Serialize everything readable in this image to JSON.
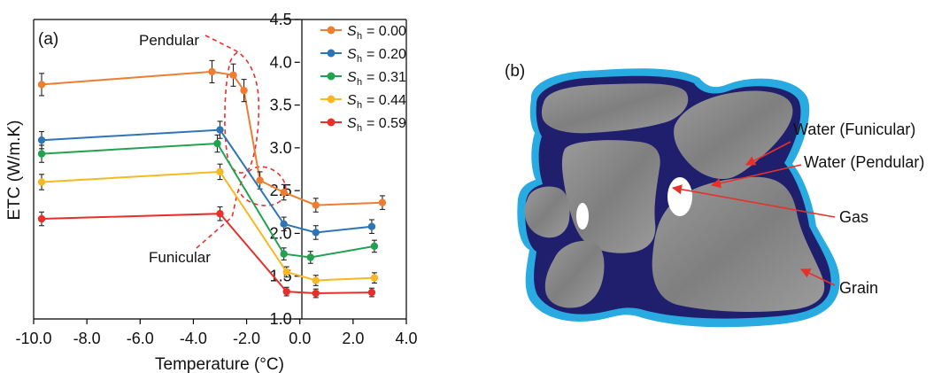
{
  "chart_data": {
    "type": "line",
    "panel_label": "(a)",
    "xlabel": "Temperature (°C)",
    "ylabel": "ETC (W/m.K)",
    "xlim": [
      -10.0,
      4.0
    ],
    "ylim": [
      1.0,
      4.5
    ],
    "x_ticks": [
      "-10.0",
      "-8.0",
      "-6.0",
      "-4.0",
      "-2.0",
      "0.0",
      "2.0",
      "4.0"
    ],
    "y_ticks": [
      "1.0",
      "1.5",
      "2.0",
      "2.5",
      "3.0",
      "3.5",
      "4.0",
      "4.5"
    ],
    "grid": false,
    "legend_position": "top-right",
    "error_bars": true,
    "series": [
      {
        "name": "Sh = 0.00",
        "color": "#ED7D31",
        "x": [
          -9.7,
          -3.3,
          -2.5,
          -2.1,
          -1.5,
          -0.6,
          0.6,
          3.1
        ],
        "y": [
          3.74,
          3.89,
          3.85,
          3.67,
          2.62,
          2.48,
          2.33,
          2.36
        ],
        "err": [
          0.13,
          0.13,
          0.13,
          0.13,
          0.1,
          0.09,
          0.08,
          0.08
        ]
      },
      {
        "name": "Sh = 0.20",
        "color": "#2E75B6",
        "x": [
          -9.7,
          -3.0,
          -0.6,
          0.6,
          2.7
        ],
        "y": [
          3.09,
          3.21,
          2.11,
          2.01,
          2.08
        ],
        "err": [
          0.1,
          0.1,
          0.08,
          0.08,
          0.08
        ]
      },
      {
        "name": "Sh = 0.31",
        "color": "#22A250",
        "x": [
          -9.7,
          -3.1,
          -0.6,
          0.4,
          2.8
        ],
        "y": [
          2.93,
          3.05,
          1.76,
          1.72,
          1.85
        ],
        "err": [
          0.1,
          0.1,
          0.07,
          0.07,
          0.07
        ]
      },
      {
        "name": "Sh = 0.44",
        "color": "#F7B921",
        "x": [
          -9.7,
          -3.0,
          -0.5,
          0.6,
          2.8
        ],
        "y": [
          2.6,
          2.72,
          1.55,
          1.45,
          1.48
        ],
        "err": [
          0.09,
          0.09,
          0.06,
          0.06,
          0.06
        ]
      },
      {
        "name": "Sh = 0.59",
        "color": "#E8302A",
        "x": [
          -9.7,
          -3.0,
          -0.5,
          0.6,
          2.7
        ],
        "y": [
          2.17,
          2.23,
          1.32,
          1.3,
          1.31
        ],
        "err": [
          0.08,
          0.08,
          0.05,
          0.05,
          0.05
        ]
      }
    ],
    "annotations": [
      {
        "text": "Pendular"
      },
      {
        "text": "Funicular"
      }
    ]
  },
  "legend": {
    "entries": [
      {
        "symbol": "S",
        "sub": "h",
        "value": "= 0.00",
        "color": "#ED7D31"
      },
      {
        "symbol": "S",
        "sub": "h",
        "value": "= 0.20",
        "color": "#2E75B6"
      },
      {
        "symbol": "S",
        "sub": "h",
        "value": "= 0.31",
        "color": "#22A250"
      },
      {
        "symbol": "S",
        "sub": "h",
        "value": "= 0.44",
        "color": "#F7B921"
      },
      {
        "symbol": "S",
        "sub": "h",
        "value": "= 0.59",
        "color": "#E8302A"
      }
    ]
  },
  "diagram": {
    "panel_label": "(b)",
    "labels": {
      "water_funicular": "Water (Funicular)",
      "water_pendular": "Water (Pendular)",
      "gas": "Gas",
      "grain": "Grain"
    },
    "colors": {
      "funicular_water": "#29ABE2",
      "pendular_water": "#1F1F6E",
      "grain": "#8C8C8C",
      "arrow": "#E8302A"
    }
  }
}
